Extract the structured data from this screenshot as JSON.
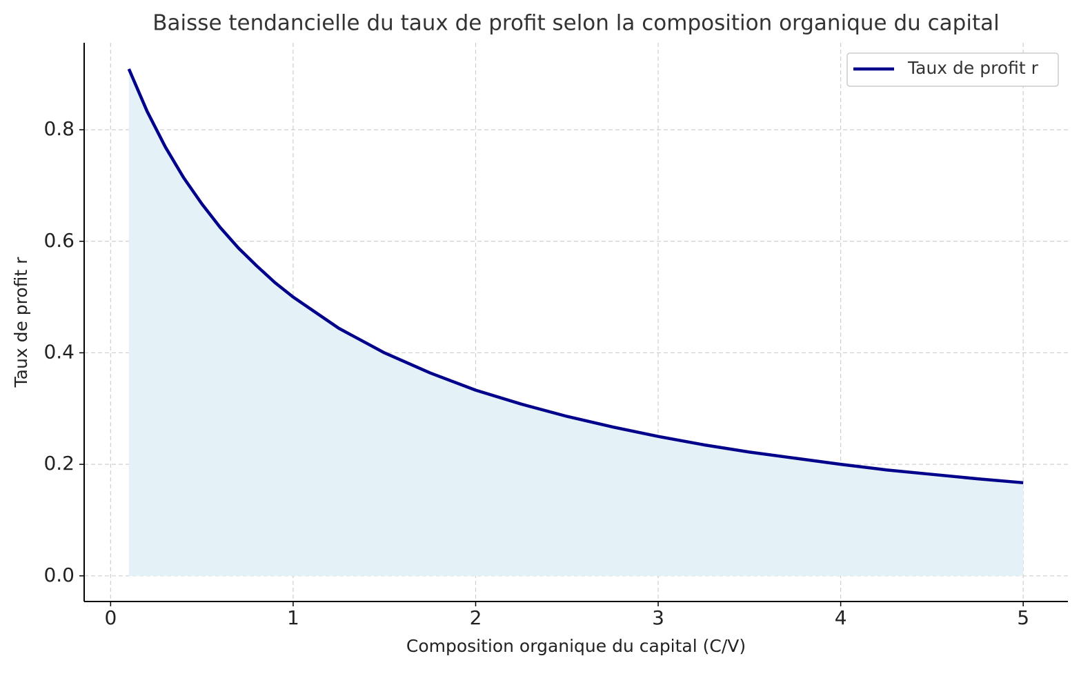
{
  "chart_data": {
    "type": "line",
    "title": "Baisse tendancielle du taux de profit selon la composition organique du capital",
    "xlabel": "Composition organique du capital (C/V)",
    "ylabel": "Taux de profit r",
    "x": [
      0.1,
      0.2,
      0.3,
      0.4,
      0.5,
      0.6,
      0.7,
      0.8,
      0.9,
      1.0,
      1.25,
      1.5,
      1.75,
      2,
      2.25,
      2.5,
      2.75,
      3,
      3.25,
      3.5,
      3.75,
      4,
      4.25,
      4.5,
      4.75,
      5
    ],
    "series": [
      {
        "name": "Taux de profit r",
        "color": "#00008b",
        "fill_color": "#e4f2f8",
        "values": [
          0.909,
          0.833,
          0.769,
          0.714,
          0.667,
          0.625,
          0.588,
          0.556,
          0.526,
          0.5,
          0.444,
          0.4,
          0.364,
          0.333,
          0.308,
          0.286,
          0.267,
          0.25,
          0.235,
          0.222,
          0.211,
          0.2,
          0.19,
          0.182,
          0.174,
          0.167
        ]
      }
    ],
    "xlim": [
      -0.145,
      5.245
    ],
    "ylim": [
      -0.046,
      0.956
    ],
    "xticks": [
      0,
      1,
      2,
      3,
      4,
      5
    ],
    "yticks": [
      {
        "value": 0,
        "label": "0.0"
      },
      0.2,
      0.4,
      0.6,
      0.8
    ],
    "grid": true,
    "legend": "upper right"
  }
}
